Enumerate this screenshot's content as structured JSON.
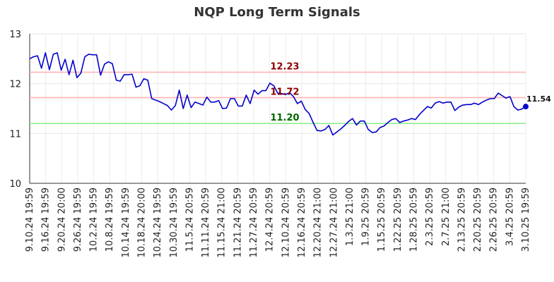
{
  "chart_data": {
    "type": "line",
    "title": "NQP Long Term Signals",
    "ylim": [
      10,
      13
    ],
    "yticks": [
      "10",
      "11",
      "12",
      "13"
    ],
    "xtick_labels": [
      "9.10.24 19:59",
      "9.16.24 19:59",
      "9.20.24 20:00",
      "9.26.24 19:59",
      "10.2.24 19:59",
      "10.8.24 19:59",
      "10.14.24 19:59",
      "10.18.24 20:00",
      "10.24.24 19:59",
      "10.30.24 19:59",
      "11.5.24 20:59",
      "11.11.24 20:59",
      "11.15.24 21:00",
      "11.21.24 20:59",
      "11.27.24 20:59",
      "12.4.24 20:59",
      "12.10.24 20:59",
      "12.16.24 20:59",
      "12.20.24 21:00",
      "12.27.24 21:00",
      "1.3.25 21:00",
      "1.9.25 20:59",
      "1.15.25 20:59",
      "1.22.25 20:59",
      "1.28.25 20:59",
      "2.3.25 20:59",
      "2.7.25 21:00",
      "2.13.25 20:59",
      "2.20.25 20:59",
      "2.26.25 20:59",
      "3.4.25 20:59",
      "3.10.25 19:59"
    ],
    "reference_lines": [
      {
        "label": "12.23",
        "value": 12.23,
        "color": "#ffb3b3",
        "label_color": "#8b0000"
      },
      {
        "label": "11.72",
        "value": 11.72,
        "color": "#ffb3b3",
        "label_color": "#8b0000"
      },
      {
        "label": "11.20",
        "value": 11.2,
        "color": "#90ee90",
        "label_color": "#006400"
      }
    ],
    "series": [
      {
        "color": "#0000cc",
        "last_label": "11.54",
        "values": [
          12.5,
          12.54,
          12.56,
          12.31,
          12.62,
          12.28,
          12.59,
          12.62,
          12.27,
          12.49,
          12.18,
          12.47,
          12.12,
          12.21,
          12.54,
          12.59,
          12.58,
          12.58,
          12.17,
          12.39,
          12.44,
          12.4,
          12.07,
          12.05,
          12.18,
          12.18,
          12.19,
          11.93,
          11.96,
          12.1,
          12.07,
          11.7,
          11.67,
          11.64,
          11.6,
          11.56,
          11.47,
          11.56,
          11.87,
          11.5,
          11.77,
          11.52,
          11.63,
          11.6,
          11.57,
          11.73,
          11.63,
          11.63,
          11.66,
          11.5,
          11.51,
          11.7,
          11.7,
          11.55,
          11.55,
          11.77,
          11.6,
          11.87,
          11.79,
          11.86,
          11.86,
          12.01,
          11.96,
          11.81,
          11.8,
          11.78,
          11.82,
          11.74,
          11.6,
          11.65,
          11.48,
          11.4,
          11.22,
          11.06,
          11.05,
          11.08,
          11.16,
          10.97,
          11.03,
          11.09,
          11.16,
          11.24,
          11.3,
          11.17,
          11.25,
          11.25,
          11.08,
          11.02,
          11.03,
          11.12,
          11.15,
          11.22,
          11.28,
          11.3,
          11.22,
          11.25,
          11.27,
          11.3,
          11.28,
          11.38,
          11.46,
          11.54,
          11.51,
          11.61,
          11.64,
          11.61,
          11.63,
          11.63,
          11.46,
          11.53,
          11.57,
          11.58,
          11.58,
          11.61,
          11.58,
          11.63,
          11.67,
          11.7,
          11.7,
          11.81,
          11.76,
          11.71,
          11.74,
          11.54,
          11.47,
          11.49,
          11.54
        ]
      }
    ],
    "grid": true
  }
}
